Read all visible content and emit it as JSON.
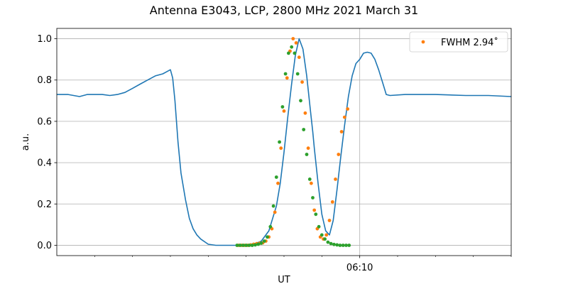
{
  "chart_data": {
    "type": "line",
    "title": "Antenna E3043, LCP, 2800 MHz 2021 March 31",
    "xlabel": "UT",
    "ylabel": "a.u.",
    "x_unit": "minutes relative to 06:10 UT",
    "xlim": [
      -40,
      20
    ],
    "ylim": [
      -0.05,
      1.05
    ],
    "x_major_ticks": [
      {
        "x": 0,
        "label": "06:10"
      }
    ],
    "x_minor_ticks": [
      -35,
      -30,
      -25,
      -20,
      -15,
      -10,
      -5,
      5,
      10,
      15,
      20
    ],
    "y_ticks": [
      0.0,
      0.2,
      0.4,
      0.6,
      0.8,
      1.0
    ],
    "y_tick_labels": [
      "0.0",
      "0.2",
      "0.4",
      "0.6",
      "0.8",
      "1.0"
    ],
    "grid": true,
    "legend_position": "top-right",
    "series": [
      {
        "kind": "line",
        "color": "#1f77b4",
        "x": [
          -40,
          -38.5,
          -37,
          -36,
          -35,
          -34,
          -33,
          -32,
          -31,
          -30,
          -29,
          -28,
          -27,
          -26,
          -25.5,
          -25.0,
          -24.7,
          -24.4,
          -24.0,
          -23.6,
          -23.0,
          -22.5,
          -22.0,
          -21.5,
          -21.0,
          -20.0,
          -19.0,
          -18.0,
          -17.0,
          -15.5,
          -14.0,
          -13.0,
          -12.0,
          -11.0,
          -10.5,
          -10.0,
          -9.5,
          -9.0,
          -8.5,
          -8.0,
          -7.5,
          -7.0,
          -6.5,
          -6.2,
          -6.0,
          -5.5,
          -5.0,
          -4.5,
          -4.0,
          -3.5,
          -3.0,
          -2.5,
          -2.0,
          -1.5,
          -1.0,
          -0.5,
          0.0,
          0.5,
          1.0,
          1.5,
          2.0,
          2.5,
          3.0,
          3.5,
          4.0,
          6.0,
          10.0,
          14.0,
          17.0,
          20.0
        ],
        "y": [
          0.73,
          0.73,
          0.72,
          0.73,
          0.73,
          0.73,
          0.725,
          0.73,
          0.74,
          0.76,
          0.78,
          0.8,
          0.82,
          0.83,
          0.84,
          0.85,
          0.81,
          0.7,
          0.5,
          0.35,
          0.22,
          0.13,
          0.08,
          0.05,
          0.03,
          0.005,
          0.0,
          0.0,
          0.0,
          0.0,
          0.005,
          0.02,
          0.07,
          0.19,
          0.3,
          0.45,
          0.62,
          0.78,
          0.92,
          1.0,
          0.95,
          0.82,
          0.65,
          0.55,
          0.47,
          0.3,
          0.15,
          0.07,
          0.05,
          0.12,
          0.27,
          0.43,
          0.58,
          0.72,
          0.82,
          0.88,
          0.9,
          0.93,
          0.935,
          0.93,
          0.9,
          0.85,
          0.79,
          0.73,
          0.725,
          0.73,
          0.73,
          0.725,
          0.725,
          0.72
        ]
      },
      {
        "kind": "scatter",
        "name": "FWHM 2.94$^\\circ$",
        "legend_label": "FWHM 2.94˚",
        "color": "#ff7f0e",
        "x": [
          -16.0,
          -15.6,
          -15.2,
          -14.8,
          -14.4,
          -14.0,
          -13.6,
          -13.2,
          -12.8,
          -12.4,
          -12.0,
          -11.6,
          -11.2,
          -10.8,
          -10.4,
          -10.0,
          -9.6,
          -9.2,
          -8.8,
          -8.4,
          -8.0,
          -7.6,
          -7.2,
          -6.8,
          -6.4,
          -6.0,
          -5.6,
          -5.2,
          -4.8,
          -4.4,
          -4.0,
          -3.6,
          -3.2,
          -2.8,
          -2.4,
          -2.0,
          -1.6
        ],
        "y": [
          0.0,
          0.0,
          0.0,
          0.0,
          0.002,
          0.005,
          0.008,
          0.01,
          0.012,
          0.02,
          0.04,
          0.08,
          0.16,
          0.3,
          0.47,
          0.65,
          0.81,
          0.94,
          1.0,
          0.98,
          0.91,
          0.79,
          0.64,
          0.47,
          0.3,
          0.17,
          0.08,
          0.04,
          0.03,
          0.05,
          0.12,
          0.21,
          0.32,
          0.44,
          0.55,
          0.62,
          0.66
        ]
      },
      {
        "kind": "scatter",
        "color": "#2ca02c",
        "x": [
          -16.2,
          -15.8,
          -15.4,
          -15.0,
          -14.6,
          -14.2,
          -13.8,
          -13.4,
          -13.0,
          -12.6,
          -12.2,
          -11.8,
          -11.4,
          -11.0,
          -10.6,
          -10.2,
          -9.8,
          -9.4,
          -9.0,
          -8.6,
          -8.2,
          -7.8,
          -7.4,
          -7.0,
          -6.6,
          -6.2,
          -5.8,
          -5.4,
          -5.0,
          -4.6,
          -4.2,
          -3.8,
          -3.4,
          -3.0,
          -2.6,
          -2.2,
          -1.8,
          -1.4
        ],
        "y": [
          0.0,
          0.0,
          0.0,
          0.0,
          0.0,
          0.0,
          0.002,
          0.005,
          0.01,
          0.02,
          0.04,
          0.09,
          0.19,
          0.33,
          0.5,
          0.67,
          0.83,
          0.93,
          0.96,
          0.93,
          0.83,
          0.7,
          0.56,
          0.44,
          0.32,
          0.23,
          0.15,
          0.09,
          0.05,
          0.03,
          0.015,
          0.008,
          0.004,
          0.002,
          0.0,
          0.0,
          0.0,
          0.0
        ]
      }
    ]
  }
}
